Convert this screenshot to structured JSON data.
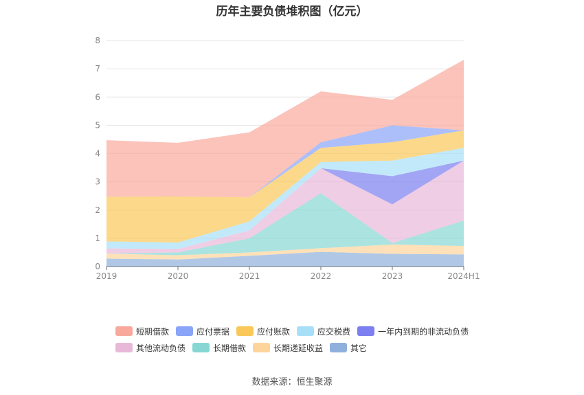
{
  "chart_data": {
    "type": "area",
    "stacked": true,
    "title": "历年主要负债堆积图（亿元）",
    "categories": [
      "2019",
      "2020",
      "2021",
      "2022",
      "2023",
      "2024H1"
    ],
    "ylim": [
      0,
      8
    ],
    "yticks": [
      "0",
      "1",
      "2",
      "3",
      "4",
      "5",
      "6",
      "7",
      "8"
    ],
    "grid": true,
    "legend_position": "bottom",
    "series": [
      {
        "name": "其它",
        "color": "#8fb0dc",
        "values": [
          0.28,
          0.25,
          0.38,
          0.52,
          0.45,
          0.43
        ]
      },
      {
        "name": "长期递延收益",
        "color": "#fdd49b",
        "values": [
          0.18,
          0.15,
          0.12,
          0.13,
          0.33,
          0.3
        ]
      },
      {
        "name": "长期借款",
        "color": "#86d7d3",
        "values": [
          0.0,
          0.1,
          0.5,
          1.95,
          0.05,
          0.9
        ]
      },
      {
        "name": "其他流动负债",
        "color": "#e8b8d8",
        "values": [
          0.18,
          0.12,
          0.28,
          0.88,
          1.37,
          2.12
        ]
      },
      {
        "name": "一年内到期的非流动负债",
        "color": "#7b7ff0",
        "values": [
          0.0,
          0.0,
          0.0,
          0.0,
          1.0,
          0.0
        ]
      },
      {
        "name": "应交税费",
        "color": "#a8dff8",
        "values": [
          0.25,
          0.23,
          0.32,
          0.22,
          0.55,
          0.45
        ]
      },
      {
        "name": "应付账款",
        "color": "#fac858",
        "values": [
          1.58,
          1.63,
          0.85,
          0.5,
          0.65,
          0.62
        ]
      },
      {
        "name": "应付票据",
        "color": "#8aa4f8",
        "values": [
          0.0,
          0.0,
          0.0,
          0.2,
          0.6,
          0.0
        ]
      },
      {
        "name": "短期借款",
        "color": "#f9a99c",
        "values": [
          2.0,
          1.9,
          2.3,
          1.8,
          0.9,
          2.5
        ]
      }
    ]
  },
  "legend_rows": [
    [
      {
        "label": "短期借款",
        "color": "#f9a99c"
      },
      {
        "label": "应付票据",
        "color": "#8aa4f8"
      },
      {
        "label": "应付账款",
        "color": "#fac858"
      },
      {
        "label": "应交税费",
        "color": "#a8dff8"
      },
      {
        "label": "一年内到期的非流动负债",
        "color": "#7b7ff0"
      }
    ],
    [
      {
        "label": "其他流动负债",
        "color": "#e8b8d8"
      },
      {
        "label": "长期借款",
        "color": "#86d7d3"
      },
      {
        "label": "长期递延收益",
        "color": "#fdd49b"
      },
      {
        "label": "其它",
        "color": "#8fb0dc"
      }
    ]
  ],
  "source": "数据来源：恒生聚源"
}
